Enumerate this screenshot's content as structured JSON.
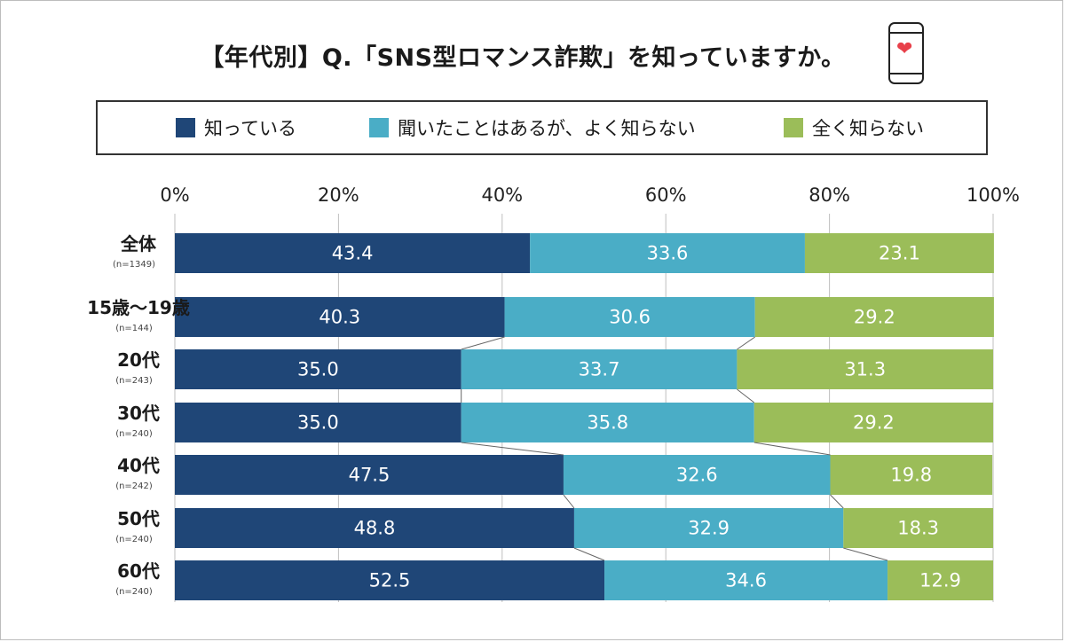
{
  "title": "【年代別】Q.「SNS型ロマンス詐欺」を知っていますか。",
  "icons": {
    "phone": "smartphone-heart-icon"
  },
  "colors": {
    "series1": "#1f4677",
    "series2": "#4aadc6",
    "series3": "#9bbd59"
  },
  "chart_data": {
    "type": "bar",
    "orientation": "horizontal-stacked-100",
    "title": "【年代別】Q.「SNS型ロマンス詐欺」を知っていますか。",
    "xlim": [
      0,
      100
    ],
    "xticks": [
      "0%",
      "20%",
      "40%",
      "60%",
      "80%",
      "100%"
    ],
    "legend_position": "top",
    "categories": [
      "全体",
      "15歳〜19歳",
      "20代",
      "30代",
      "40代",
      "50代",
      "60代"
    ],
    "sample_sizes": [
      "(n=1349)",
      "(n=144)",
      "(n=243)",
      "(n=240)",
      "(n=242)",
      "(n=240)",
      "(n=240)"
    ],
    "series": [
      {
        "name": "知っている",
        "values": [
          43.4,
          40.3,
          35.0,
          35.0,
          47.5,
          48.8,
          52.5
        ]
      },
      {
        "name": "聞いたことはあるが、よく知らない",
        "values": [
          33.6,
          30.6,
          33.7,
          35.8,
          32.6,
          32.9,
          34.6
        ]
      },
      {
        "name": "全く知らない",
        "values": [
          23.1,
          29.2,
          31.3,
          29.2,
          19.8,
          18.3,
          12.9
        ]
      }
    ]
  }
}
